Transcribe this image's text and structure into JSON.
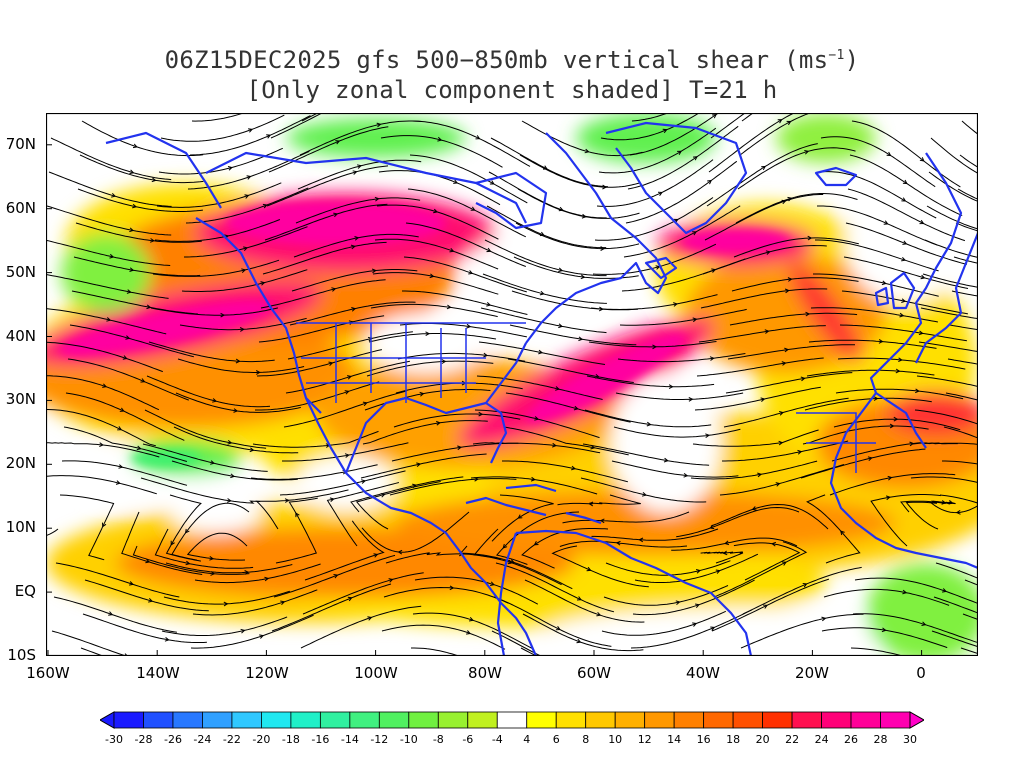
{
  "title": {
    "line1_prefix": "06Z15DEC2025 gfs 500−850mb vertical shear (ms",
    "line1_sup": "−1",
    "line1_suffix": ")",
    "line2": "[Only zonal component shaded] T=21 h"
  },
  "chart_data": {
    "type": "heatmap",
    "title": "06Z15DEC2025 gfs 500-850mb vertical shear (ms-1) [Only zonal component shaded] T=21 h",
    "y_ticks": [
      "70N",
      "60N",
      "50N",
      "40N",
      "30N",
      "20N",
      "10N",
      "EQ",
      "10S"
    ],
    "x_ticks": [
      "160W",
      "140W",
      "120W",
      "100W",
      "80W",
      "60W",
      "40W",
      "20W",
      "0"
    ],
    "lon_range": [
      -160,
      10
    ],
    "lat_range": [
      -10,
      75
    ],
    "colorbar": {
      "labels": [
        "-30",
        "-28",
        "-26",
        "-24",
        "-22",
        "-20",
        "-18",
        "-16",
        "-14",
        "-12",
        "-10",
        "-8",
        "-6",
        "-4",
        "4",
        "6",
        "8",
        "10",
        "12",
        "14",
        "16",
        "18",
        "20",
        "22",
        "24",
        "26",
        "28",
        "30"
      ],
      "colors": [
        "#1a1aff",
        "#2050ff",
        "#2878ff",
        "#30a0ff",
        "#30c8ff",
        "#20e8f0",
        "#20f0c8",
        "#30f0a0",
        "#40f080",
        "#50f060",
        "#70f040",
        "#98f030",
        "#c0f020",
        "#ffffff",
        "#ffff00",
        "#ffe000",
        "#ffc800",
        "#ffb000",
        "#ff9800",
        "#ff8000",
        "#ff6800",
        "#ff5000",
        "#ff3000",
        "#ff1050",
        "#ff0078",
        "#ff0098",
        "#ff00b0"
      ]
    }
  }
}
